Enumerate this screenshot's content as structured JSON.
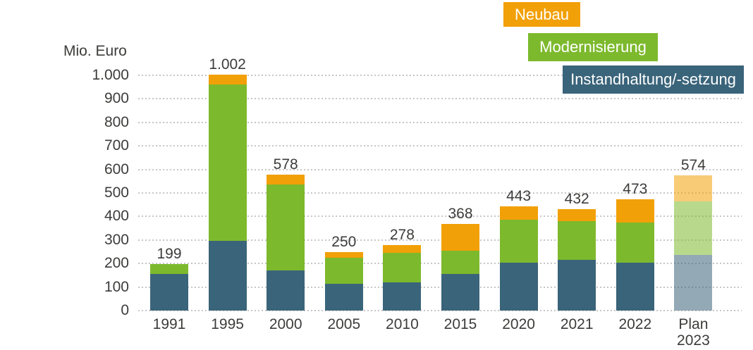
{
  "axis": {
    "unit_label": "Mio. Euro"
  },
  "legend": {
    "items": [
      {
        "label": "Neubau",
        "color": "#F2A007"
      },
      {
        "label": "Modernisierung",
        "color": "#7DB92D"
      },
      {
        "label": "Instandhaltung/-setzung",
        "color": "#3A647A"
      }
    ]
  },
  "chart_data": {
    "type": "bar",
    "stacked": true,
    "title": "",
    "ylabel": "Mio. Euro",
    "xlabel": "",
    "ylim": [
      0,
      1000
    ],
    "grid": "dotted horizontal gridlines",
    "legend_position": "top-right staggered boxes",
    "categories": [
      "1991",
      "1995",
      "2000",
      "2005",
      "2010",
      "2015",
      "2020",
      "2021",
      "2022",
      "Plan 2023"
    ],
    "totals_display": [
      "199",
      "1.002",
      "578",
      "250",
      "278",
      "368",
      "443",
      "432",
      "473",
      "574"
    ],
    "series": [
      {
        "name": "Instandhaltung/-setzung",
        "color": "#3A647A",
        "values": [
          155,
          295,
          170,
          115,
          120,
          155,
          205,
          215,
          205,
          237
        ]
      },
      {
        "name": "Modernisierung",
        "color": "#7DB92D",
        "values": [
          44,
          665,
          365,
          110,
          125,
          100,
          180,
          165,
          170,
          228
        ]
      },
      {
        "name": "Neubau",
        "color": "#F2A007",
        "values": [
          0,
          42,
          43,
          25,
          33,
          113,
          58,
          52,
          98,
          109
        ]
      }
    ],
    "yticks": [
      {
        "value": 1000,
        "label": "1.000"
      },
      {
        "value": 900,
        "label": "900"
      },
      {
        "value": 800,
        "label": "800"
      },
      {
        "value": 700,
        "label": "700"
      },
      {
        "value": 600,
        "label": "600"
      },
      {
        "value": 500,
        "label": "500"
      },
      {
        "value": 400,
        "label": "400"
      },
      {
        "value": 300,
        "label": "300"
      },
      {
        "value": 200,
        "label": "200"
      },
      {
        "value": 100,
        "label": "100"
      },
      {
        "value": 0,
        "label": "0"
      }
    ],
    "muted_bar": {
      "category": "Plan 2023",
      "index": 9,
      "opacity": 0.55,
      "note": "Plan bar drawn in lighter semi-transparent colors"
    }
  }
}
